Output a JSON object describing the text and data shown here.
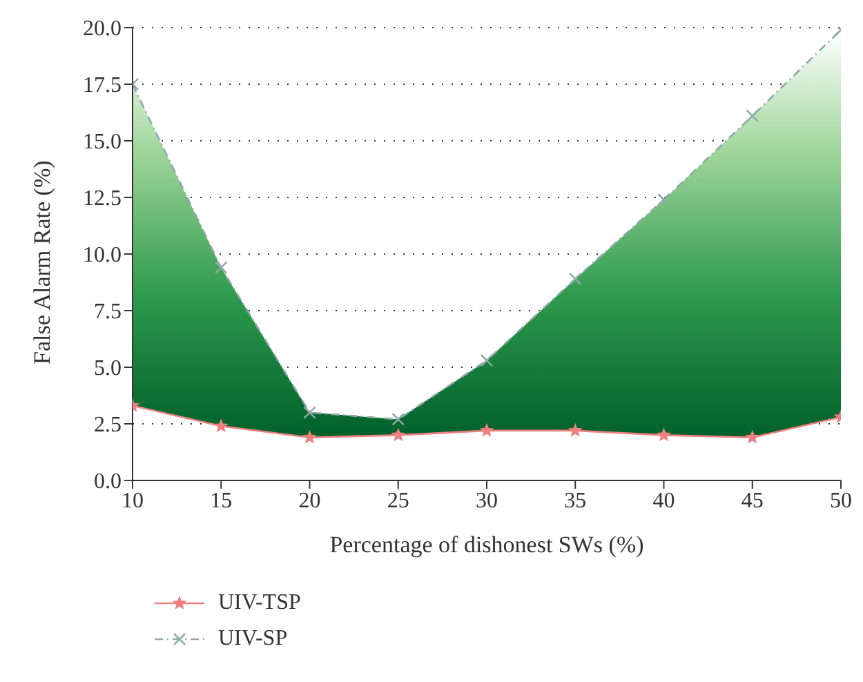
{
  "chart_data": {
    "type": "line",
    "xlabel": "Percentage of dishonest SWs (%)",
    "ylabel": "False Alarm Rate (%)",
    "x": [
      10,
      15,
      20,
      25,
      30,
      35,
      40,
      45,
      50
    ],
    "series": [
      {
        "name": "UIV-TSP",
        "color": "#f08080",
        "marker": "star",
        "line_style": "solid",
        "values": [
          3.3,
          2.4,
          1.9,
          2.0,
          2.2,
          2.2,
          2.0,
          1.9,
          2.8
        ]
      },
      {
        "name": "UIV-SP",
        "color": "#8fa8a8",
        "marker": "cross",
        "line_style": "dashed",
        "values": [
          17.5,
          9.4,
          3.0,
          2.7,
          5.3,
          8.9,
          12.4,
          16.1,
          19.9
        ],
        "lower": [
          3.3,
          2.4,
          1.9,
          2.0,
          2.2,
          2.2,
          2.0,
          1.9,
          2.8
        ],
        "upper": [
          17.5,
          9.4,
          3.0,
          2.7,
          5.3,
          8.9,
          12.4,
          16.1,
          19.9
        ]
      }
    ],
    "xlim": [
      10,
      50
    ],
    "xticks": [
      10,
      15,
      20,
      25,
      30,
      35,
      40,
      45,
      50
    ],
    "ylim": [
      0,
      20
    ],
    "yticks": [
      {
        "value": 0,
        "label": "0.0"
      },
      {
        "value": 2.5,
        "label": "2.5"
      },
      {
        "value": 5,
        "label": "5.0"
      },
      {
        "value": 7.5,
        "label": "7.5"
      },
      {
        "value": 10,
        "label": "10.0"
      },
      {
        "value": 12.5,
        "label": "12.5"
      },
      {
        "value": 15,
        "label": "15.0"
      },
      {
        "value": 17.5,
        "label": "17.5"
      },
      {
        "value": 20,
        "label": "20.0"
      }
    ],
    "grid": "y",
    "legend": "bottom left"
  }
}
